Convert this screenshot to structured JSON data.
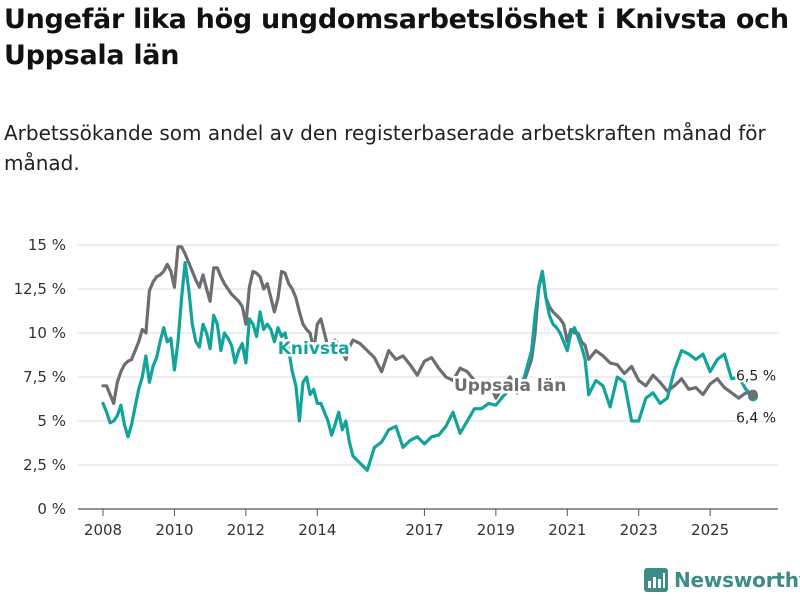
{
  "title": "Ungefär lika hög ungdomsarbetslöshet i Knivsta och Uppsala län",
  "subtitle": "Arbetssökande som andel av den registerbaserade arbetskraften månad för månad.",
  "brand": "Newsworthy",
  "chart_data": {
    "type": "line",
    "ylim": [
      0,
      15
    ],
    "xlim": [
      2007.3,
      2026.9
    ],
    "y_ticks": [
      0,
      2.5,
      5,
      7.5,
      10,
      12.5,
      15
    ],
    "y_tick_labels": [
      "0 %",
      "2,5 %",
      "5 %",
      "7,5 %",
      "10 %",
      "12,5 %",
      "15 %"
    ],
    "x_ticks": [
      2008,
      2010,
      2012,
      2014,
      2017,
      2019,
      2021,
      2023,
      2025
    ],
    "x_tick_labels": [
      "2008",
      "2010",
      "2012",
      "2014",
      "2017",
      "2019",
      "2021",
      "2023",
      "2025"
    ],
    "grid": "horizontal",
    "colors": {
      "Uppsala län": "#6d6d73",
      "Knivsta": "#12a39a"
    },
    "series": [
      {
        "name": "Uppsala län",
        "label": "Uppsala län",
        "end_label": "6,5 %",
        "x": [
          2008.0,
          2008.1,
          2008.2,
          2008.3,
          2008.4,
          2008.5,
          2008.6,
          2008.7,
          2008.8,
          2008.9,
          2009.0,
          2009.1,
          2009.2,
          2009.3,
          2009.4,
          2009.5,
          2009.6,
          2009.7,
          2009.8,
          2009.9,
          2010.0,
          2010.1,
          2010.2,
          2010.3,
          2010.4,
          2010.5,
          2010.6,
          2010.7,
          2010.8,
          2010.9,
          2011.0,
          2011.1,
          2011.2,
          2011.3,
          2011.4,
          2011.5,
          2011.6,
          2011.7,
          2011.8,
          2011.9,
          2012.0,
          2012.1,
          2012.2,
          2012.3,
          2012.4,
          2012.5,
          2012.6,
          2012.7,
          2012.8,
          2012.9,
          2013.0,
          2013.1,
          2013.2,
          2013.3,
          2013.4,
          2013.5,
          2013.6,
          2013.7,
          2013.8,
          2013.9,
          2014.0,
          2014.1,
          2014.2,
          2014.3,
          2014.4,
          2014.5,
          2014.6,
          2014.7,
          2014.8,
          2014.9,
          2015.0,
          2015.2,
          2015.4,
          2015.6,
          2015.8,
          2016.0,
          2016.2,
          2016.4,
          2016.6,
          2016.8,
          2017.0,
          2017.2,
          2017.4,
          2017.6,
          2017.8,
          2018.0,
          2018.2,
          2018.4,
          2018.6,
          2018.8,
          2019.0,
          2019.2,
          2019.4,
          2019.6,
          2019.8,
          2020.0,
          2020.1,
          2020.2,
          2020.3,
          2020.4,
          2020.5,
          2020.6,
          2020.7,
          2020.8,
          2020.9,
          2021.0,
          2021.1,
          2021.2,
          2021.3,
          2021.4,
          2021.5,
          2021.6,
          2021.8,
          2022.0,
          2022.2,
          2022.4,
          2022.6,
          2022.8,
          2023.0,
          2023.2,
          2023.4,
          2023.6,
          2023.8,
          2024.0,
          2024.2,
          2024.4,
          2024.6,
          2024.8,
          2025.0,
          2025.2,
          2025.4,
          2025.6,
          2025.8,
          2026.0,
          2026.2
        ],
        "y": [
          7.0,
          7.0,
          6.5,
          6.0,
          7.2,
          7.8,
          8.2,
          8.4,
          8.5,
          9.0,
          9.5,
          10.2,
          10.0,
          12.4,
          12.9,
          13.2,
          13.3,
          13.5,
          13.9,
          13.5,
          12.6,
          14.9,
          14.9,
          14.5,
          14.0,
          13.5,
          13.0,
          12.6,
          13.3,
          12.5,
          11.8,
          13.7,
          13.7,
          13.2,
          12.8,
          12.5,
          12.2,
          12.0,
          11.8,
          11.5,
          10.5,
          12.6,
          13.5,
          13.4,
          13.2,
          12.5,
          12.8,
          12.0,
          11.2,
          12.0,
          13.5,
          13.4,
          12.8,
          12.5,
          12.0,
          11.2,
          10.5,
          10.2,
          10.0,
          9.0,
          10.5,
          10.8,
          10.0,
          9.2,
          9.5,
          9.6,
          9.3,
          8.9,
          8.5,
          9.2,
          9.6,
          9.4,
          9.0,
          8.6,
          7.8,
          9.0,
          8.5,
          8.7,
          8.2,
          7.6,
          8.4,
          8.6,
          8.0,
          7.5,
          7.3,
          8.0,
          7.8,
          7.3,
          6.9,
          7.3,
          6.3,
          7.0,
          7.5,
          6.8,
          7.3,
          8.5,
          10.0,
          12.6,
          13.5,
          12.0,
          11.5,
          11.2,
          11.0,
          10.8,
          10.5,
          9.5,
          10.2,
          10.0,
          10.0,
          9.5,
          9.3,
          8.5,
          9.0,
          8.7,
          8.3,
          8.2,
          7.7,
          8.1,
          7.3,
          7.0,
          7.6,
          7.2,
          6.7,
          7.0,
          7.4,
          6.8,
          6.9,
          6.5,
          7.1,
          7.4,
          6.9,
          6.6,
          6.3,
          6.6,
          6.5
        ]
      },
      {
        "name": "Knivsta",
        "label": "Knivsta",
        "end_label": "6,4 %",
        "x": [
          2008.0,
          2008.1,
          2008.2,
          2008.3,
          2008.4,
          2008.5,
          2008.6,
          2008.7,
          2008.8,
          2008.9,
          2009.0,
          2009.1,
          2009.2,
          2009.3,
          2009.4,
          2009.5,
          2009.6,
          2009.7,
          2009.8,
          2009.9,
          2010.0,
          2010.1,
          2010.2,
          2010.3,
          2010.4,
          2010.5,
          2010.6,
          2010.7,
          2010.8,
          2010.9,
          2011.0,
          2011.1,
          2011.2,
          2011.3,
          2011.4,
          2011.5,
          2011.6,
          2011.7,
          2011.8,
          2011.9,
          2012.0,
          2012.1,
          2012.2,
          2012.3,
          2012.4,
          2012.5,
          2012.6,
          2012.7,
          2012.8,
          2012.9,
          2013.0,
          2013.1,
          2013.2,
          2013.3,
          2013.4,
          2013.5,
          2013.6,
          2013.7,
          2013.8,
          2013.9,
          2014.0,
          2014.1,
          2014.2,
          2014.3,
          2014.4,
          2014.5,
          2014.6,
          2014.7,
          2014.8,
          2014.9,
          2015.0,
          2015.2,
          2015.4,
          2015.6,
          2015.8,
          2016.0,
          2016.2,
          2016.4,
          2016.6,
          2016.8,
          2017.0,
          2017.2,
          2017.4,
          2017.6,
          2017.8,
          2018.0,
          2018.2,
          2018.4,
          2018.6,
          2018.8,
          2019.0,
          2019.2,
          2019.4,
          2019.6,
          2019.8,
          2020.0,
          2020.1,
          2020.2,
          2020.3,
          2020.4,
          2020.5,
          2020.6,
          2020.7,
          2020.8,
          2020.9,
          2021.0,
          2021.1,
          2021.2,
          2021.3,
          2021.4,
          2021.5,
          2021.6,
          2021.8,
          2022.0,
          2022.2,
          2022.4,
          2022.6,
          2022.8,
          2023.0,
          2023.2,
          2023.4,
          2023.6,
          2023.8,
          2024.0,
          2024.2,
          2024.4,
          2024.6,
          2024.8,
          2025.0,
          2025.2,
          2025.4,
          2025.6,
          2025.8,
          2026.0,
          2026.2
        ],
        "y": [
          6.0,
          5.5,
          4.9,
          5.0,
          5.3,
          5.9,
          4.8,
          4.1,
          4.8,
          5.8,
          6.8,
          7.5,
          8.7,
          7.2,
          8.1,
          8.6,
          9.5,
          10.3,
          9.5,
          9.7,
          7.9,
          9.5,
          12.0,
          14.0,
          12.5,
          10.5,
          9.5,
          9.2,
          10.5,
          10.0,
          9.1,
          11.0,
          10.5,
          9.0,
          10.0,
          9.7,
          9.3,
          8.3,
          9.0,
          9.4,
          8.3,
          10.8,
          10.5,
          9.8,
          11.2,
          10.2,
          10.5,
          10.2,
          9.5,
          10.3,
          9.8,
          10.0,
          9.0,
          7.8,
          7.0,
          5.0,
          7.2,
          7.5,
          6.5,
          6.8,
          6.0,
          6.0,
          5.5,
          5.0,
          4.2,
          4.8,
          5.5,
          4.5,
          5.0,
          3.8,
          3.0,
          2.6,
          2.2,
          3.5,
          3.8,
          4.5,
          4.7,
          3.5,
          3.9,
          4.1,
          3.7,
          4.1,
          4.2,
          4.7,
          5.5,
          4.3,
          5.0,
          5.7,
          5.7,
          6.0,
          5.9,
          6.4,
          6.8,
          6.6,
          7.5,
          9.0,
          11.0,
          12.5,
          13.5,
          12.0,
          11.0,
          10.5,
          10.3,
          10.0,
          9.5,
          9.0,
          10.0,
          10.3,
          9.8,
          9.2,
          8.5,
          6.5,
          7.3,
          7.0,
          5.8,
          7.5,
          7.2,
          5.0,
          5.0,
          6.3,
          6.6,
          6.0,
          6.3,
          7.9,
          9.0,
          8.8,
          8.5,
          8.8,
          7.8,
          8.5,
          8.8,
          7.4,
          7.5,
          6.8,
          6.4
        ]
      }
    ]
  }
}
